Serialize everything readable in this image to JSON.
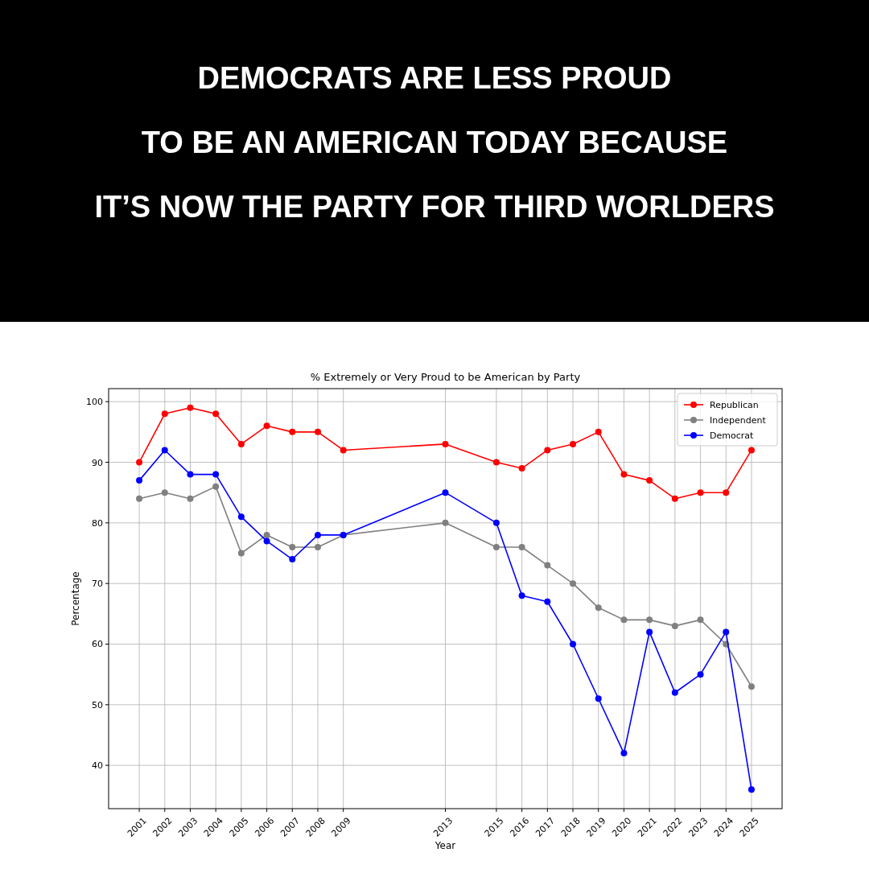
{
  "chart_data": {
    "type": "line",
    "title": "% Extremely or Very Proud to be American by Party",
    "xlabel": "Year",
    "ylabel": "Percentage",
    "annotations": [
      "DEMOCRATS ARE LESS PROUD",
      "TO BE AN AMERICAN TODAY BECAUSE",
      "IT’S NOW THE PARTY FOR THIRD WORLDERS"
    ],
    "x": [
      2001,
      2002,
      2003,
      2004,
      2005,
      2006,
      2007,
      2008,
      2009,
      2013,
      2015,
      2016,
      2017,
      2018,
      2019,
      2020,
      2021,
      2022,
      2023,
      2024,
      2025
    ],
    "series": [
      {
        "name": "Republican",
        "color": "#ff0000",
        "values": [
          90,
          98,
          99,
          98,
          93,
          96,
          95,
          95,
          92,
          93,
          90,
          89,
          92,
          93,
          95,
          88,
          87,
          84,
          85,
          85,
          92
        ]
      },
      {
        "name": "Independent",
        "color": "#808080",
        "values": [
          84,
          85,
          84,
          86,
          75,
          78,
          76,
          76,
          78,
          80,
          76,
          76,
          73,
          70,
          66,
          64,
          64,
          63,
          64,
          60,
          53
        ]
      },
      {
        "name": "Democrat",
        "color": "#0000ff",
        "values": [
          87,
          92,
          88,
          88,
          81,
          77,
          74,
          78,
          78,
          85,
          80,
          68,
          67,
          60,
          51,
          42,
          62,
          52,
          55,
          62,
          36
        ]
      }
    ],
    "xlim": [
      1999.8,
      2026.2
    ],
    "xticks": [
      2001,
      2002,
      2003,
      2004,
      2005,
      2006,
      2007,
      2008,
      2009,
      2013,
      2015,
      2016,
      2017,
      2018,
      2019,
      2020,
      2021,
      2022,
      2023,
      2024,
      2025
    ],
    "ylim": [
      32.85,
      102.15
    ],
    "yticks": [
      40,
      50,
      60,
      70,
      80,
      90,
      100
    ],
    "grid": true,
    "legend": "top right",
    "marker": "circle",
    "line_style": "solid"
  }
}
